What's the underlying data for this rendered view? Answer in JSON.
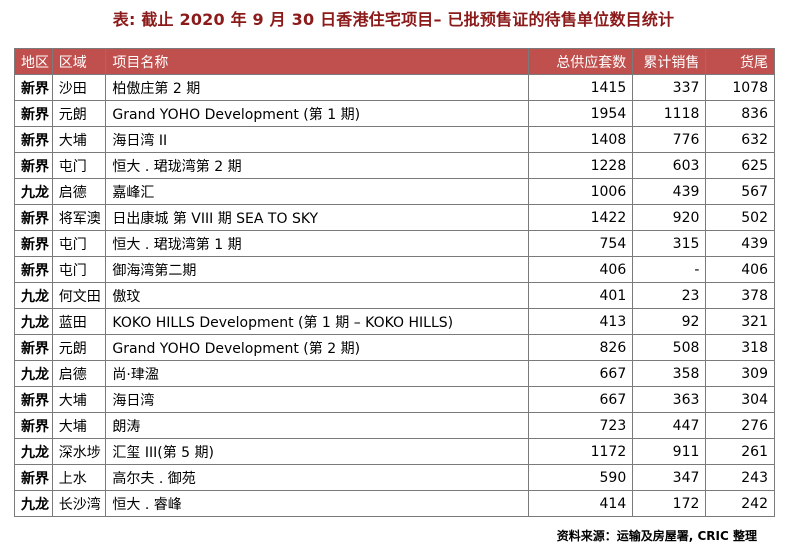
{
  "title": "表: 截止 2020 年 9 月 30 日香港住宅项目– 已批预售证的待售单位数目统计",
  "table": {
    "headers": [
      "地区",
      "区域",
      "项目名称",
      "总供应套数",
      "累计销售",
      "货尾"
    ],
    "rows": [
      [
        "新界",
        "沙田",
        "柏傲庄第 2 期",
        "1415",
        "337",
        "1078"
      ],
      [
        "新界",
        "元朗",
        "Grand YOHO Development (第 1 期)",
        "1954",
        "1118",
        "836"
      ],
      [
        "新界",
        "大埔",
        "海日湾 II",
        "1408",
        "776",
        "632"
      ],
      [
        "新界",
        "屯门",
        "恒大 . 珺珑湾第 2 期",
        "1228",
        "603",
        "625"
      ],
      [
        "九龙",
        "启德",
        "嘉峰汇",
        "1006",
        "439",
        "567"
      ],
      [
        "新界",
        "将军澳",
        "日出康城 第 VIII 期 SEA TO SKY",
        "1422",
        "920",
        "502"
      ],
      [
        "新界",
        "屯门",
        "恒大 . 珺珑湾第 1 期",
        "754",
        "315",
        "439"
      ],
      [
        "新界",
        "屯门",
        "御海湾第二期",
        "406",
        "-",
        "406"
      ],
      [
        "九龙",
        "何文田",
        "傲玟",
        "401",
        "23",
        "378"
      ],
      [
        "九龙",
        "蓝田",
        "KOKO HILLS Development (第 1 期 – KOKO HILLS)",
        "413",
        "92",
        "321"
      ],
      [
        "新界",
        "元朗",
        "Grand YOHO Development (第 2 期)",
        "826",
        "508",
        "318"
      ],
      [
        "九龙",
        "启德",
        "尚·珒溋",
        "667",
        "358",
        "309"
      ],
      [
        "新界",
        "大埔",
        "海日湾",
        "667",
        "363",
        "304"
      ],
      [
        "新界",
        "大埔",
        "朗涛",
        "723",
        "447",
        "276"
      ],
      [
        "九龙",
        "深水埗",
        "汇玺 III(第 5 期)",
        "1172",
        "911",
        "261"
      ],
      [
        "新界",
        "上水",
        "高尔夫 . 御苑",
        "590",
        "347",
        "243"
      ],
      [
        "九龙",
        "长沙湾",
        "恒大 . 睿峰",
        "414",
        "172",
        "242"
      ]
    ]
  },
  "source": "资料来源：运输及房屋署, CRIC 整理",
  "colors": {
    "header_bg": "#c0504d",
    "title": "#8b1a1a"
  }
}
